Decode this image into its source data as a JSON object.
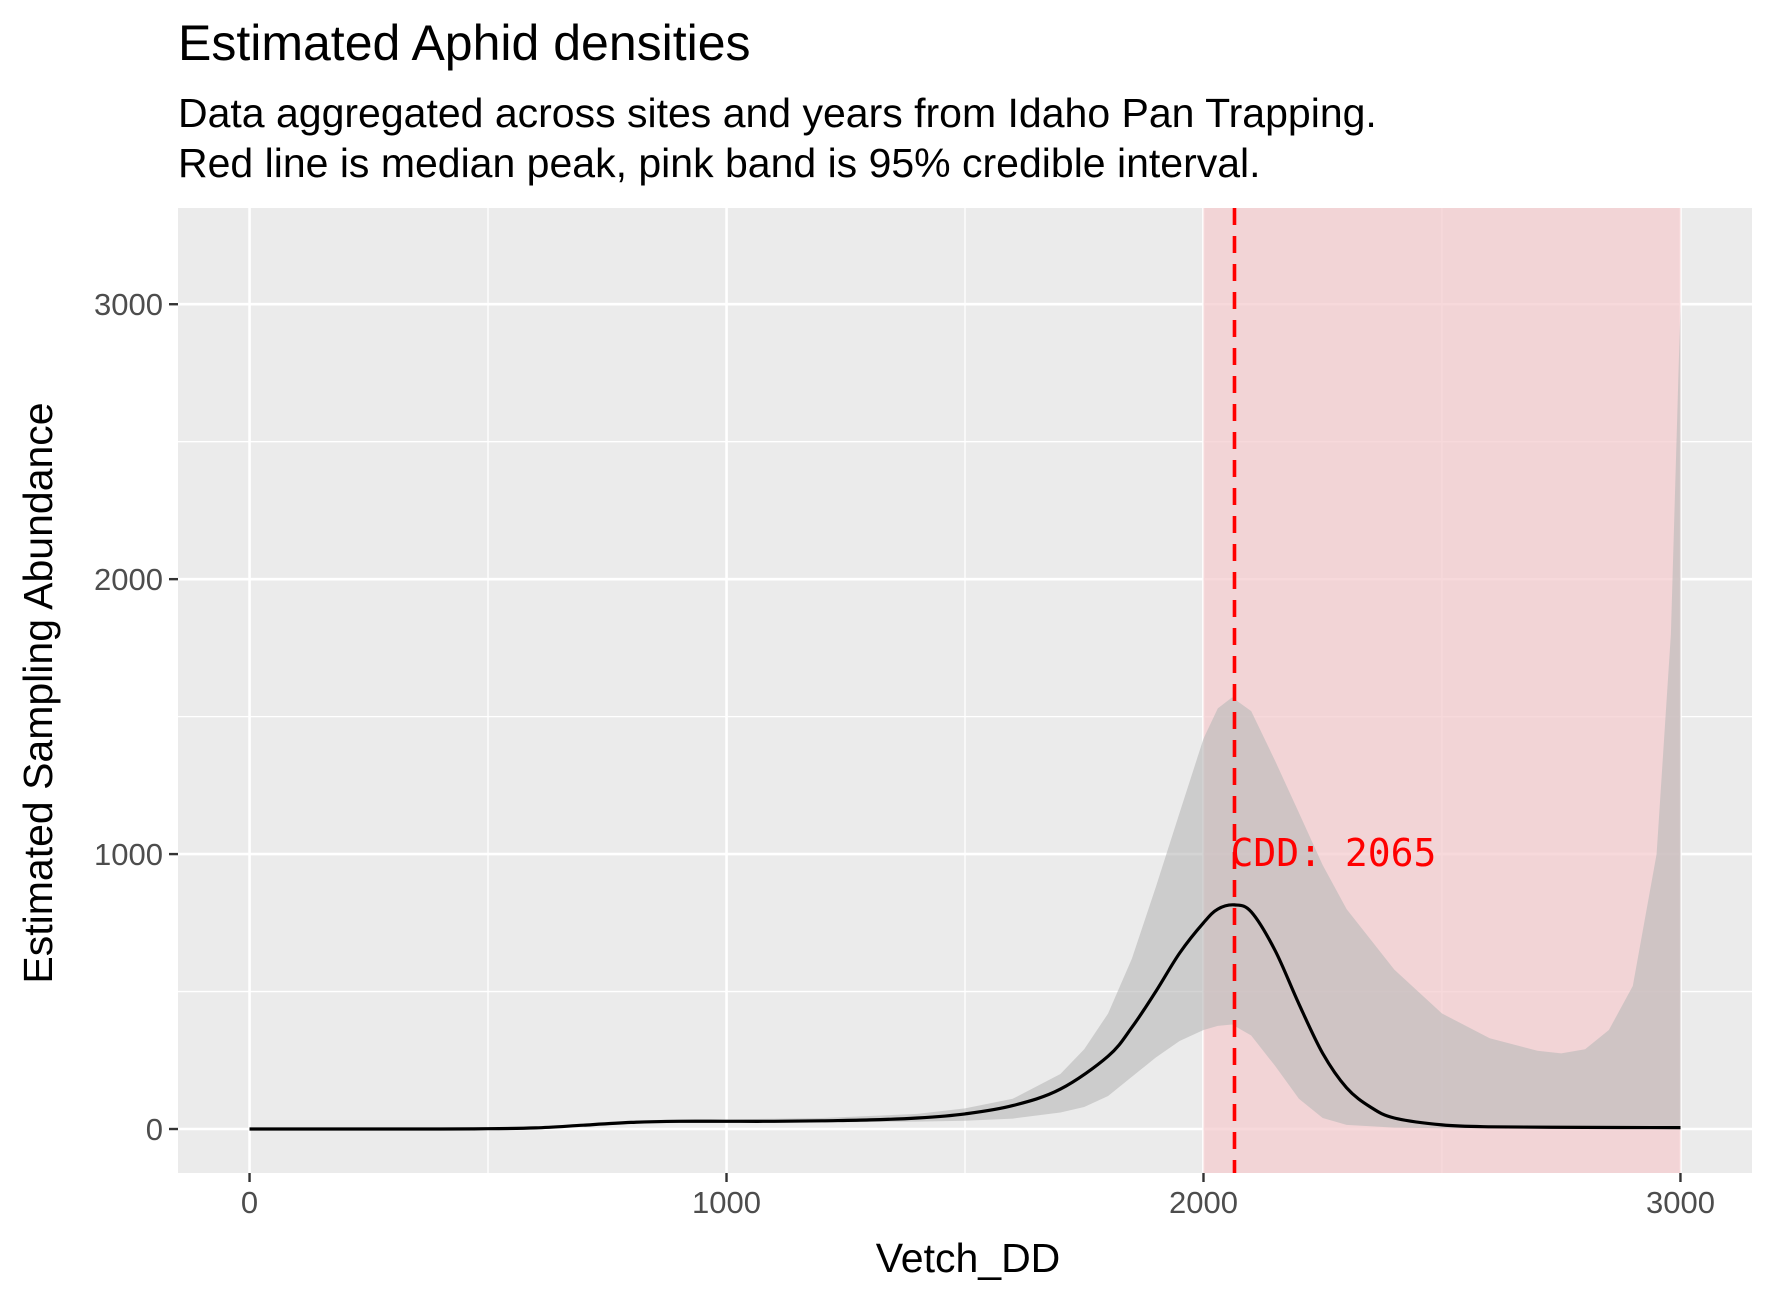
{
  "chart_data": {
    "type": "line",
    "title": "Estimated Aphid densities",
    "subtitle": [
      "Data aggregated across sites and years from Idaho Pan Trapping.",
      "Red line is median peak, pink band is 95% credible interval."
    ],
    "xlabel": "Vetch_DD",
    "ylabel": "Estimated Sampling Abundance",
    "xlim": [
      -150,
      3150
    ],
    "ylim": [
      -160,
      3350
    ],
    "x_ticks": [
      0,
      1000,
      2000,
      3000
    ],
    "x_tick_labels": [
      "0",
      "1000",
      "2000",
      "3000"
    ],
    "y_ticks": [
      0,
      1000,
      2000,
      3000
    ],
    "y_tick_labels": [
      "0",
      "1000",
      "2000",
      "3000"
    ],
    "grid": true,
    "series": [
      {
        "role": "median",
        "x": [
          0,
          200,
          400,
          500,
          600,
          700,
          800,
          900,
          1000,
          1100,
          1200,
          1300,
          1400,
          1500,
          1600,
          1700,
          1800,
          1850,
          1900,
          1950,
          2000,
          2030,
          2065,
          2100,
          2150,
          2200,
          2250,
          2300,
          2350,
          2400,
          2500,
          2600,
          2800,
          3000
        ],
        "y": [
          0,
          0,
          0,
          1,
          4,
          14,
          24,
          28,
          28,
          28,
          30,
          33,
          40,
          55,
          85,
          145,
          265,
          370,
          500,
          640,
          750,
          800,
          815,
          790,
          650,
          455,
          275,
          150,
          80,
          40,
          15,
          8,
          6,
          5
        ]
      },
      {
        "role": "credible-band",
        "x": [
          0,
          500,
          700,
          800,
          900,
          1000,
          1200,
          1400,
          1500,
          1600,
          1700,
          1750,
          1800,
          1850,
          1900,
          1950,
          2000,
          2030,
          2060,
          2100,
          2150,
          2200,
          2250,
          2300,
          2400,
          2500,
          2600,
          2700,
          2750,
          2800,
          2850,
          2900,
          2950,
          2980,
          3000
        ],
        "upper": [
          0,
          2,
          16,
          30,
          35,
          35,
          40,
          55,
          75,
          110,
          200,
          290,
          420,
          620,
          880,
          1150,
          1420,
          1530,
          1570,
          1520,
          1340,
          1150,
          960,
          800,
          580,
          420,
          330,
          285,
          275,
          290,
          360,
          520,
          1000,
          1800,
          3000
        ],
        "lower": [
          0,
          0,
          10,
          20,
          22,
          22,
          24,
          27,
          30,
          38,
          60,
          80,
          120,
          190,
          260,
          320,
          360,
          375,
          380,
          340,
          230,
          110,
          40,
          15,
          5,
          3,
          3,
          3,
          3,
          3,
          3,
          3,
          3,
          3,
          3
        ]
      }
    ],
    "credible_interval": {
      "lower": 2000,
      "upper": 3000,
      "color": "#f4cccf"
    },
    "median_peak": {
      "x": 2065,
      "color": "#ff0000",
      "label": "CDD: 2065",
      "label_y": 1000
    },
    "colors": {
      "panel": "#ebebeb",
      "grid": "#ffffff",
      "ribbon": "#b9b9b9",
      "line": "#000000"
    }
  }
}
